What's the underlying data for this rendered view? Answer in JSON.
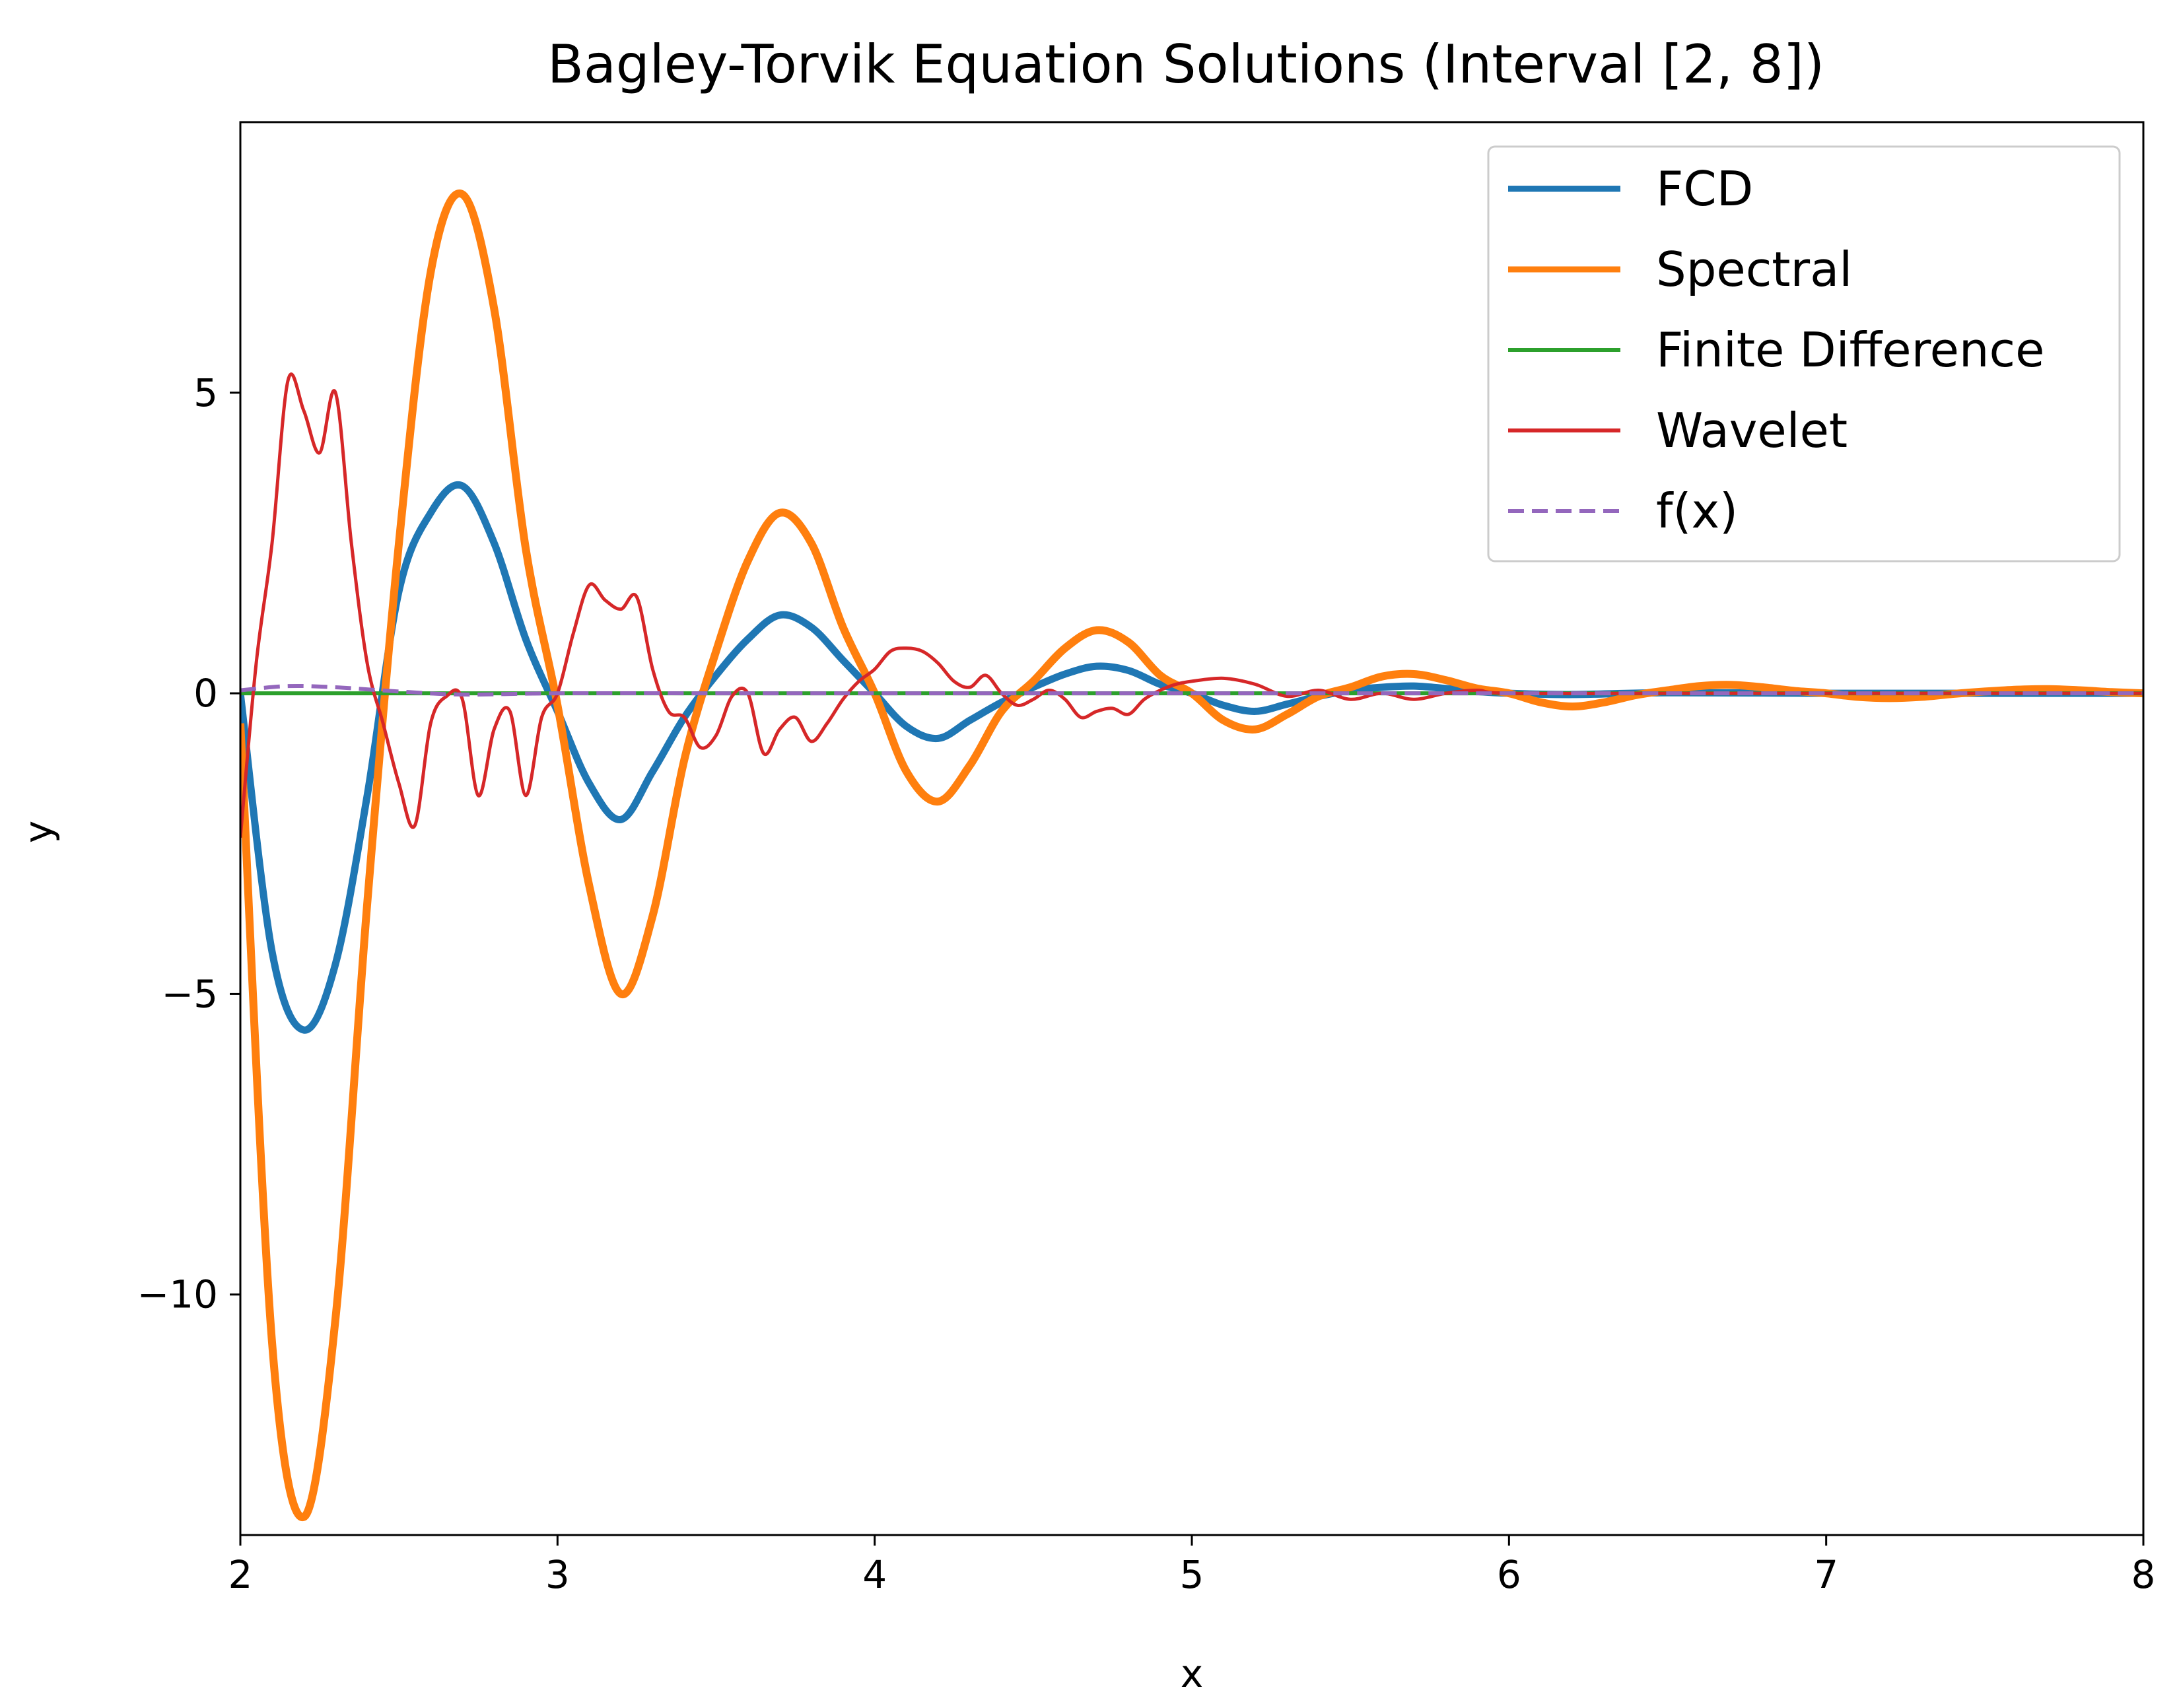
{
  "chart_data": {
    "type": "line",
    "title": "Bagley-Torvik Equation Solutions (Interval [2, 8])",
    "xlabel": "x",
    "ylabel": "y",
    "xlim": [
      2,
      8
    ],
    "ylim": [
      -14.0,
      9.5
    ],
    "x_ticks": [
      2,
      3,
      4,
      5,
      6,
      7,
      8
    ],
    "x_tick_labels": [
      "2",
      "3",
      "4",
      "5",
      "6",
      "7",
      "8"
    ],
    "y_ticks": [
      5,
      0,
      -5,
      -10
    ],
    "y_tick_labels": [
      "5",
      "0",
      "−5",
      "−10"
    ],
    "grid": false,
    "legend": "top-right",
    "series": [
      {
        "name": "FCD",
        "color": "#1f77b4",
        "style": "solid",
        "x": [
          2.0,
          2.1,
          2.2,
          2.3,
          2.4,
          2.5,
          2.6,
          2.7,
          2.8,
          2.9,
          3.0,
          3.1,
          3.2,
          3.3,
          3.4,
          3.5,
          3.6,
          3.7,
          3.8,
          3.9,
          4.0,
          4.1,
          4.2,
          4.3,
          4.4,
          4.5,
          4.6,
          4.7,
          4.8,
          4.9,
          5.0,
          5.1,
          5.2,
          5.3,
          5.4,
          5.5,
          5.6,
          5.7,
          5.8,
          5.9,
          6.0,
          6.2,
          6.5,
          7.0,
          7.5,
          8.0
        ],
        "y": [
          0.0,
          -4.3,
          -5.6,
          -4.5,
          -1.7,
          1.7,
          3.0,
          3.45,
          2.5,
          0.9,
          -0.3,
          -1.5,
          -2.1,
          -1.3,
          -0.4,
          0.3,
          0.9,
          1.3,
          1.1,
          0.55,
          0.0,
          -0.55,
          -0.75,
          -0.45,
          -0.15,
          0.1,
          0.32,
          0.45,
          0.38,
          0.15,
          0.0,
          -0.2,
          -0.3,
          -0.18,
          -0.05,
          0.05,
          0.1,
          0.12,
          0.08,
          0.03,
          0.0,
          -0.02,
          0.01,
          0.0,
          0.0,
          0.0
        ]
      },
      {
        "name": "Spectral",
        "color": "#ff7f0e",
        "style": "solid",
        "x": [
          2.0,
          2.1,
          2.2,
          2.3,
          2.4,
          2.5,
          2.6,
          2.7,
          2.8,
          2.9,
          3.0,
          3.1,
          3.2,
          3.3,
          3.4,
          3.5,
          3.6,
          3.7,
          3.8,
          3.9,
          4.0,
          4.1,
          4.2,
          4.3,
          4.4,
          4.5,
          4.6,
          4.7,
          4.8,
          4.9,
          5.0,
          5.1,
          5.2,
          5.3,
          5.4,
          5.5,
          5.6,
          5.7,
          5.8,
          5.9,
          6.0,
          6.1,
          6.2,
          6.3,
          6.4,
          6.5,
          6.6,
          6.7,
          6.8,
          6.9,
          7.0,
          7.1,
          7.2,
          7.3,
          7.4,
          7.5,
          7.6,
          7.7,
          7.8,
          7.9,
          8.0
        ],
        "y": [
          -0.5,
          -10.8,
          -13.7,
          -10.4,
          -3.5,
          2.5,
          7.0,
          8.3,
          6.4,
          2.4,
          -0.2,
          -3.2,
          -5.0,
          -3.7,
          -1.1,
          0.7,
          2.2,
          3.0,
          2.5,
          1.1,
          0.0,
          -1.3,
          -1.8,
          -1.2,
          -0.3,
          0.2,
          0.75,
          1.05,
          0.85,
          0.3,
          0.0,
          -0.45,
          -0.6,
          -0.35,
          -0.05,
          0.1,
          0.28,
          0.32,
          0.22,
          0.08,
          0.0,
          -0.15,
          -0.22,
          -0.15,
          -0.03,
          0.05,
          0.12,
          0.14,
          0.1,
          0.04,
          0.0,
          -0.06,
          -0.08,
          -0.06,
          -0.01,
          0.03,
          0.06,
          0.07,
          0.05,
          0.02,
          0.0
        ]
      },
      {
        "name": "Finite Difference",
        "color": "#2ca02c",
        "style": "solid",
        "x": [
          2.0,
          8.0
        ],
        "y": [
          0.0,
          0.0
        ]
      },
      {
        "name": "Wavelet",
        "color": "#d62728",
        "style": "solid",
        "x": [
          2.0,
          2.05,
          2.1,
          2.15,
          2.2,
          2.25,
          2.3,
          2.35,
          2.4,
          2.45,
          2.5,
          2.55,
          2.6,
          2.65,
          2.7,
          2.75,
          2.8,
          2.85,
          2.9,
          2.95,
          3.0,
          3.05,
          3.1,
          3.15,
          3.2,
          3.25,
          3.3,
          3.35,
          3.4,
          3.45,
          3.5,
          3.55,
          3.6,
          3.65,
          3.7,
          3.75,
          3.8,
          3.85,
          3.9,
          3.95,
          4.0,
          4.05,
          4.1,
          4.15,
          4.2,
          4.25,
          4.3,
          4.35,
          4.4,
          4.45,
          4.5,
          4.55,
          4.6,
          4.65,
          4.7,
          4.75,
          4.8,
          4.85,
          4.9,
          4.95,
          5.0,
          5.1,
          5.2,
          5.3,
          5.4,
          5.5,
          5.6,
          5.7,
          5.8,
          5.9,
          6.0,
          6.5,
          7.0,
          7.5,
          8.0
        ],
        "y": [
          -2.4,
          0.5,
          2.5,
          5.2,
          4.7,
          4.0,
          5.0,
          2.5,
          0.5,
          -0.5,
          -1.5,
          -2.2,
          -0.5,
          -0.05,
          -0.1,
          -1.7,
          -0.6,
          -0.3,
          -1.7,
          -0.4,
          0.0,
          1.0,
          1.8,
          1.55,
          1.4,
          1.6,
          0.4,
          -0.3,
          -0.4,
          -0.9,
          -0.7,
          -0.05,
          0.0,
          -1.0,
          -0.6,
          -0.4,
          -0.8,
          -0.5,
          -0.1,
          0.2,
          0.4,
          0.7,
          0.75,
          0.7,
          0.5,
          0.2,
          0.1,
          0.3,
          0.0,
          -0.2,
          -0.1,
          0.05,
          -0.1,
          -0.4,
          -0.3,
          -0.25,
          -0.35,
          -0.1,
          0.05,
          0.15,
          0.2,
          0.25,
          0.15,
          -0.05,
          0.05,
          -0.1,
          0.0,
          -0.1,
          0.0,
          0.05,
          0.0,
          0.0,
          0.0,
          0.0,
          0.0
        ]
      },
      {
        "name": "f(x)",
        "color": "#9467bd",
        "style": "dashed",
        "x": [
          2.0,
          2.15,
          2.3,
          2.5,
          2.7,
          3.0,
          3.5,
          4.0,
          5.0,
          6.0,
          7.0,
          8.0
        ],
        "y": [
          0.05,
          0.12,
          0.1,
          0.03,
          -0.02,
          0.0,
          0.0,
          0.0,
          0.0,
          0.0,
          0.0,
          0.0
        ]
      }
    ]
  }
}
